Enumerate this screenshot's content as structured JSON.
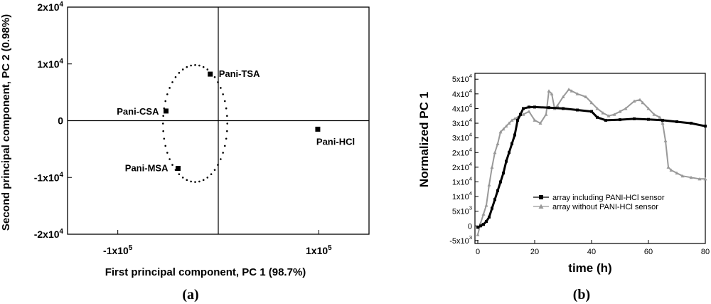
{
  "chart_data": [
    {
      "type": "scatter",
      "panel_label": "(a)",
      "xlabel": "First principal component, PC 1 (98.7%)",
      "ylabel": "Second principal component, PC 2 (0.98%)",
      "xlim": [
        -150000,
        150000
      ],
      "ylim": [
        -20000,
        20000
      ],
      "xticks": [
        {
          "value": -100000,
          "label": "-1x10",
          "exp": "5"
        },
        {
          "value": 100000,
          "label": "1x10",
          "exp": "5"
        }
      ],
      "yticks": [
        {
          "value": 20000,
          "label": "2x10",
          "exp": "4"
        },
        {
          "value": 10000,
          "label": "1x10",
          "exp": "4"
        },
        {
          "value": 0,
          "label": "0",
          "exp": ""
        },
        {
          "value": -10000,
          "label": "-1x10",
          "exp": "4"
        },
        {
          "value": -20000,
          "label": "-2x10",
          "exp": "4"
        }
      ],
      "points": [
        {
          "name": "Pani-TSA",
          "x": -8000,
          "y": 8200
        },
        {
          "name": "Pani-CSA",
          "x": -52000,
          "y": 1700
        },
        {
          "name": "Pani-MSA",
          "x": -40000,
          "y": -8400
        },
        {
          "name": "Pani-HCl",
          "x": 99000,
          "y": -1500
        }
      ],
      "ellipse": {
        "cx": -23000,
        "cy": -500,
        "rx": 32000,
        "ry": 10300
      },
      "origin_lines": true
    },
    {
      "type": "line",
      "panel_label": "(b)",
      "xlabel": "time (h)",
      "ylabel": "Normalized PC 1",
      "xlim": [
        -1,
        80
      ],
      "ylim": [
        -6000,
        52000
      ],
      "xticks": [
        0,
        20,
        40,
        60,
        80
      ],
      "yticks": [
        {
          "value": 50000,
          "label": "5x10",
          "exp": "4"
        },
        {
          "value": 45000,
          "label": "4x10",
          "exp": "4"
        },
        {
          "value": 40000,
          "label": "4x10",
          "exp": "4"
        },
        {
          "value": 35000,
          "label": "3x10",
          "exp": "4"
        },
        {
          "value": 30000,
          "label": "3x10",
          "exp": "4"
        },
        {
          "value": 25000,
          "label": "2x10",
          "exp": "4"
        },
        {
          "value": 20000,
          "label": "2x10",
          "exp": "4"
        },
        {
          "value": 15000,
          "label": "1x10",
          "exp": "4"
        },
        {
          "value": 10000,
          "label": "1x10",
          "exp": "4"
        },
        {
          "value": 5000,
          "label": "5x10",
          "exp": "3"
        },
        {
          "value": 0,
          "label": "0",
          "exp": ""
        },
        {
          "value": -5000,
          "label": "-5x10",
          "exp": "3"
        }
      ],
      "legend_position": "lower-right",
      "series": [
        {
          "name": "array including PANI-HCl sensor",
          "color": "#000000",
          "marker": "square",
          "x": [
            0,
            1,
            2,
            3,
            4,
            5,
            6,
            7,
            8,
            9,
            10,
            11,
            12,
            13,
            14,
            15,
            16,
            18,
            20,
            25,
            30,
            35,
            40,
            42,
            45,
            50,
            55,
            60,
            65,
            70,
            75,
            80
          ],
          "y": [
            -500,
            0,
            500,
            1500,
            3000,
            6000,
            9000,
            12000,
            15000,
            18000,
            22000,
            25000,
            28000,
            31000,
            36000,
            38000,
            40000,
            40500,
            40500,
            40300,
            40000,
            39500,
            39000,
            37000,
            36000,
            36200,
            36500,
            36300,
            36000,
            35500,
            35000,
            34000
          ]
        },
        {
          "name": "array without PANI-HCl sensor",
          "color": "#999999",
          "marker": "triangle",
          "x": [
            0,
            1,
            2,
            3,
            4,
            5,
            6,
            7,
            8,
            9,
            10,
            11,
            12,
            13,
            14,
            16,
            18,
            20,
            22,
            24,
            25,
            26,
            27,
            28,
            30,
            32,
            33,
            35,
            38,
            40,
            42,
            44,
            46,
            48,
            50,
            52,
            55,
            57,
            58,
            60,
            62,
            64,
            65,
            66,
            67,
            68,
            70,
            72,
            75,
            78,
            80
          ],
          "y": [
            -3000,
            1000,
            4000,
            7000,
            14000,
            20000,
            25000,
            28000,
            32000,
            33000,
            34000,
            35000,
            36000,
            36500,
            37000,
            38000,
            39000,
            36000,
            35000,
            38000,
            46000,
            45000,
            40000,
            41000,
            44000,
            46500,
            46000,
            45000,
            44000,
            42000,
            40000,
            38500,
            37500,
            38000,
            39000,
            40000,
            42500,
            43000,
            42000,
            40000,
            38000,
            37000,
            35000,
            29000,
            20000,
            19000,
            18000,
            17000,
            16500,
            16000,
            16000
          ]
        }
      ]
    }
  ]
}
